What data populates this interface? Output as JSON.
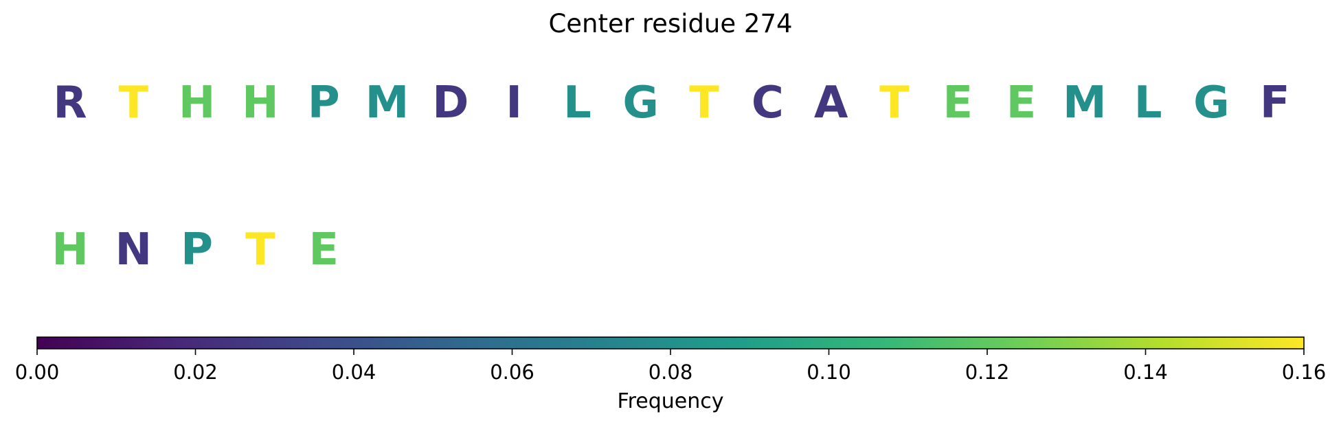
{
  "chart_data": {
    "type": "heatmap",
    "title": "Center residue 274",
    "residues": [
      {
        "letter": "R",
        "value": 0.026
      },
      {
        "letter": "T",
        "value": 0.16
      },
      {
        "letter": "H",
        "value": 0.12
      },
      {
        "letter": "H",
        "value": 0.12
      },
      {
        "letter": "P",
        "value": 0.08
      },
      {
        "letter": "M",
        "value": 0.08
      },
      {
        "letter": "D",
        "value": 0.026
      },
      {
        "letter": "I",
        "value": 0.026
      },
      {
        "letter": "L",
        "value": 0.08
      },
      {
        "letter": "G",
        "value": 0.08
      },
      {
        "letter": "T",
        "value": 0.16
      },
      {
        "letter": "C",
        "value": 0.026
      },
      {
        "letter": "A",
        "value": 0.026
      },
      {
        "letter": "T",
        "value": 0.16
      },
      {
        "letter": "E",
        "value": 0.12
      },
      {
        "letter": "E",
        "value": 0.12
      },
      {
        "letter": "M",
        "value": 0.08
      },
      {
        "letter": "L",
        "value": 0.08
      },
      {
        "letter": "G",
        "value": 0.08
      },
      {
        "letter": "F",
        "value": 0.026
      },
      {
        "letter": "H",
        "value": 0.12
      },
      {
        "letter": "N",
        "value": 0.026
      },
      {
        "letter": "P",
        "value": 0.08
      },
      {
        "letter": "T",
        "value": 0.16
      },
      {
        "letter": "E",
        "value": 0.12
      }
    ],
    "letters_per_row": 20,
    "colorbar": {
      "label": "Frequency",
      "range": [
        0,
        0.16
      ],
      "ticks": [
        0.0,
        0.02,
        0.04,
        0.06,
        0.08,
        0.1,
        0.12,
        0.14,
        0.16
      ],
      "tick_labels": [
        "0.00",
        "0.02",
        "0.04",
        "0.06",
        "0.08",
        "0.10",
        "0.12",
        "0.14",
        "0.16"
      ],
      "colormap": "viridis",
      "stops": [
        "#440154",
        "#482878",
        "#3e4989",
        "#31688e",
        "#26828e",
        "#1f9e89",
        "#35b779",
        "#6ece58",
        "#b5de2b",
        "#fde725"
      ]
    }
  }
}
